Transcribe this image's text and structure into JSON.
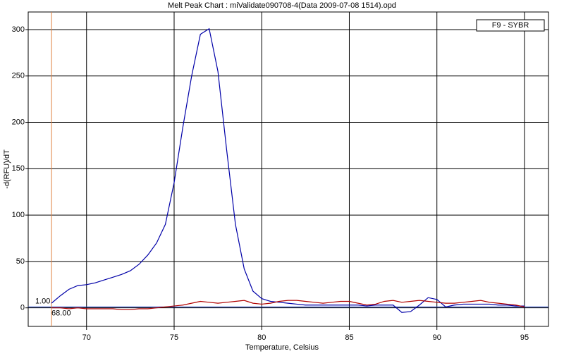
{
  "chart_data": {
    "type": "line",
    "title": "Melt Peak Chart : miValidate090708-4(Data 2009-07-08 1514).opd",
    "x_label": "Temperature, Celsius",
    "y_label": "-d(RFU)/dT",
    "x": [
      68,
      68.5,
      69,
      69.5,
      70,
      70.5,
      71,
      71.5,
      72,
      72.5,
      73,
      73.5,
      74,
      74.5,
      75,
      75.5,
      76,
      76.5,
      77,
      77.5,
      78,
      78.5,
      79,
      79.5,
      80,
      80.5,
      81,
      81.5,
      82,
      82.5,
      83,
      83.5,
      84,
      84.5,
      85,
      85.5,
      86,
      86.5,
      87,
      87.5,
      88,
      88.5,
      89,
      89.5,
      90,
      90.5,
      91,
      91.5,
      92,
      92.5,
      93,
      93.5,
      94,
      94.5,
      95
    ],
    "series": [
      {
        "name": "F9 - SYBR",
        "color": "#0000a8",
        "values": [
          5,
          13,
          20,
          24,
          25,
          27,
          30,
          33,
          36,
          40,
          47,
          57,
          70,
          90,
          135,
          195,
          250,
          295,
          301,
          255,
          170,
          90,
          42,
          18,
          10,
          7,
          6,
          5,
          4,
          3,
          3,
          3,
          3,
          3,
          3,
          3,
          2,
          3,
          3,
          3,
          -5,
          -4,
          3,
          11,
          9,
          1,
          3,
          4,
          4,
          4,
          4,
          3,
          3,
          2,
          2
        ]
      },
      {
        "color": "#b00000",
        "values": [
          0,
          0,
          -1,
          0,
          -1,
          -1,
          -1,
          -1,
          -2,
          -2,
          -1,
          -1,
          0,
          1,
          2,
          3,
          5,
          7,
          6,
          5,
          6,
          7,
          8,
          5,
          4,
          5,
          7,
          8,
          8,
          7,
          6,
          5,
          6,
          7,
          7,
          5,
          3,
          4,
          7,
          8,
          6,
          7,
          8,
          7,
          6,
          5,
          5,
          6,
          7,
          8,
          6,
          5,
          4,
          3,
          1
        ]
      }
    ],
    "threshold": {
      "value": 1.0,
      "label": "1.00",
      "color": "#2040c0"
    },
    "cursor_x": {
      "value": 68,
      "label": "68.00",
      "color": "#e08040"
    },
    "xlim": [
      66.67,
      96.37
    ],
    "xticks": [
      70,
      75,
      80,
      85,
      90,
      95
    ],
    "ylim": [
      -20,
      319
    ],
    "yticks": [
      0,
      50,
      100,
      150,
      200,
      250,
      300
    ],
    "grid": true,
    "legend": "upper right"
  }
}
